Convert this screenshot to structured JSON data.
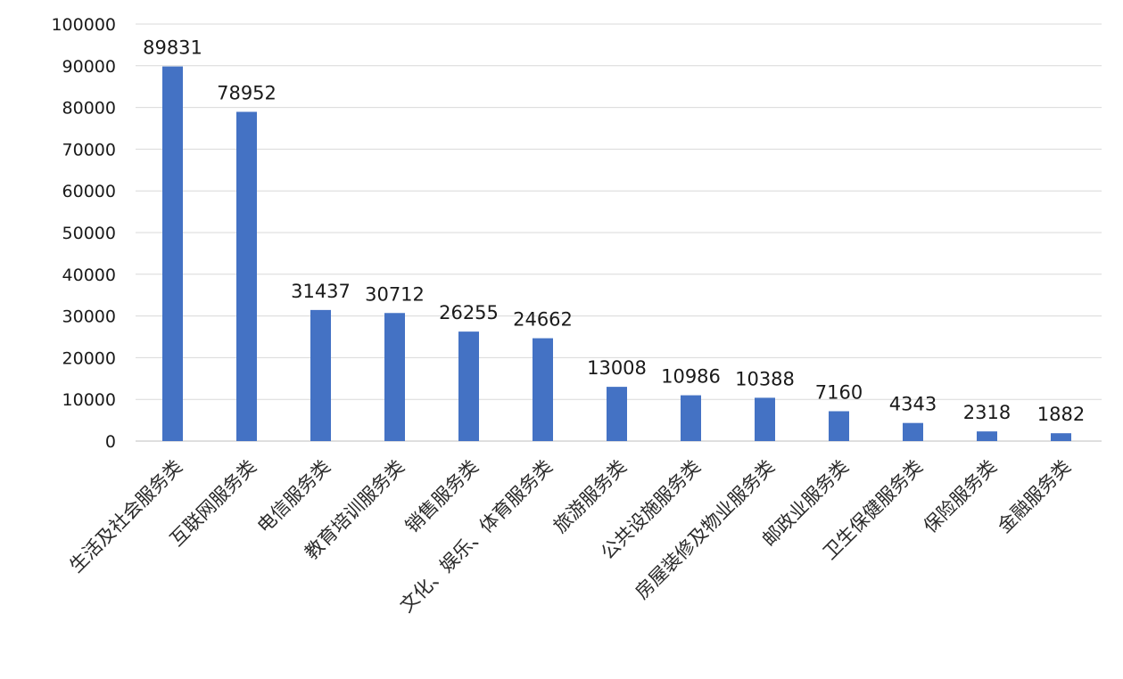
{
  "chart_data": {
    "type": "bar",
    "title": "",
    "xlabel": "",
    "ylabel": "",
    "ylim": [
      0,
      100000
    ],
    "yticks": [
      0,
      10000,
      20000,
      30000,
      40000,
      50000,
      60000,
      70000,
      80000,
      90000,
      100000
    ],
    "grid": true,
    "legend": "none",
    "bar_color": "#4472c4",
    "categories": [
      "生活及社会服务类",
      "互联网服务类",
      "电信服务类",
      "教育培训服务类",
      "销售服务类",
      "文化、娱乐、体育服务类",
      "旅游服务类",
      "公共设施服务类",
      "房屋装修及物业服务类",
      "邮政业服务类",
      "卫生保健服务类",
      "保险服务类",
      "金融服务类"
    ],
    "values": [
      89831,
      78952,
      31437,
      30712,
      26255,
      24662,
      13008,
      10986,
      10388,
      7160,
      4343,
      2318,
      1882
    ]
  }
}
